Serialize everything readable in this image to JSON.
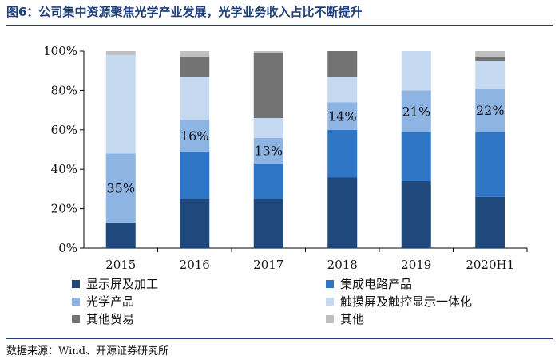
{
  "title": "图6：公司集中资源聚焦光学产业发展，光学业务收入占比不断提升",
  "source": "数据来源：Wind、开源证券研究所",
  "chart_data": {
    "type": "bar",
    "stacked": true,
    "categories": [
      "2015",
      "2016",
      "2017",
      "2018",
      "2019",
      "2020H1"
    ],
    "y_ticks": [
      "0%",
      "20%",
      "40%",
      "60%",
      "80%",
      "100%"
    ],
    "ylim": [
      0,
      100
    ],
    "series": [
      {
        "name": "显示屏及加工",
        "color": "#1f497d",
        "values": [
          13,
          25,
          25,
          36,
          34,
          26
        ]
      },
      {
        "name": "集成电路产品",
        "color": "#2e75c6",
        "values": [
          0,
          24,
          18,
          24,
          25,
          33
        ]
      },
      {
        "name": "光学产品",
        "color": "#8db4e2",
        "values": [
          35,
          16,
          13,
          14,
          21,
          22
        ]
      },
      {
        "name": "触摸屏及触控显示一体化",
        "color": "#c5d9f1",
        "values": [
          50,
          22,
          10,
          13,
          20,
          14
        ]
      },
      {
        "name": "其他贸易",
        "color": "#737373",
        "values": [
          0,
          10,
          33,
          13,
          0,
          2
        ]
      },
      {
        "name": "其他",
        "color": "#bfbfbf",
        "values": [
          2,
          3,
          1,
          0,
          0,
          3
        ]
      }
    ],
    "annotations": [
      {
        "category": "2015",
        "series": "光学产品",
        "text": "35%"
      },
      {
        "category": "2016",
        "series": "光学产品",
        "text": "16%"
      },
      {
        "category": "2017",
        "series": "光学产品",
        "text": "13%"
      },
      {
        "category": "2018",
        "series": "光学产品",
        "text": "14%"
      },
      {
        "category": "2019",
        "series": "光学产品",
        "text": "21%"
      },
      {
        "category": "2020H1",
        "series": "光学产品",
        "text": "22%"
      }
    ]
  }
}
